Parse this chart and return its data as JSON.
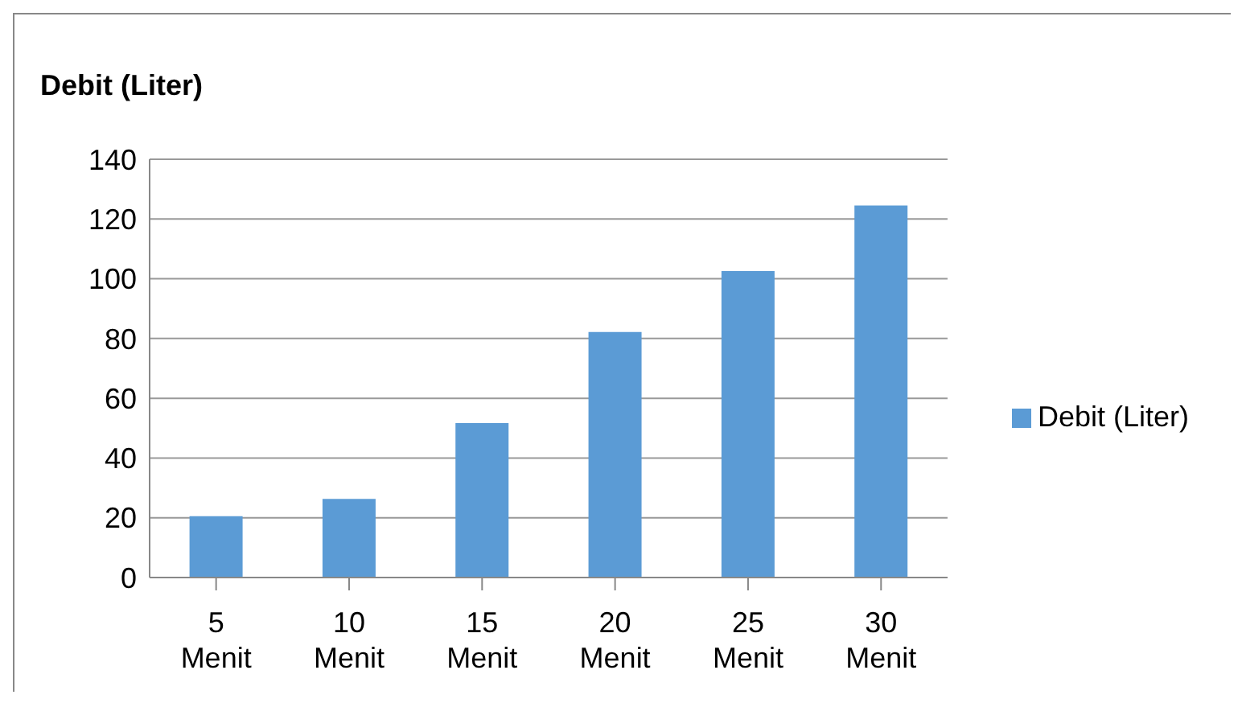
{
  "chart_data": {
    "type": "bar",
    "title": "Debit (Liter)",
    "categories": [
      "5 Menit",
      "10 Menit",
      "15 Menit",
      "20 Menit",
      "25 Menit",
      "30 Menit"
    ],
    "series": [
      {
        "name": "Debit (Liter)",
        "color": "#5b9bd5",
        "values": [
          20.5,
          26.3,
          51.7,
          82.2,
          102.6,
          124.5
        ]
      }
    ],
    "ylim": [
      0,
      140
    ],
    "yticks": [
      0,
      20,
      40,
      60,
      80,
      100,
      120,
      140
    ],
    "grid": "y",
    "legend": "right"
  }
}
